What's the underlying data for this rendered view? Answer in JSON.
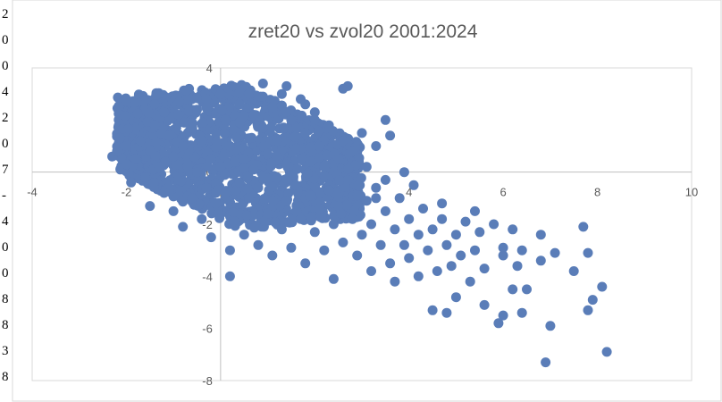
{
  "chart_data": {
    "type": "scatter",
    "title": "zret20 vs zvol20 2001:2024",
    "xlabel": "",
    "ylabel": "",
    "xlim": [
      -4,
      10
    ],
    "ylim": [
      -8,
      4
    ],
    "x_ticks": [
      "-4",
      "-2",
      "0",
      "2",
      "4",
      "6",
      "8",
      "10"
    ],
    "y_ticks": [
      "4",
      "2",
      "0",
      "-2",
      "-4",
      "-6",
      "-8"
    ],
    "grid": false,
    "legend": "none",
    "marker_color": "#5a7db8",
    "note": "dense cloud approximated; representative points",
    "series": [
      {
        "points": [
          [
            -2.3,
            0.6
          ],
          [
            -2.2,
            0.8
          ],
          [
            -2.0,
            0.3
          ],
          [
            -2.0,
            1.0
          ],
          [
            -1.9,
            -0.4
          ],
          [
            -1.8,
            0.5
          ],
          [
            -1.7,
            1.2
          ],
          [
            -1.6,
            -0.2
          ],
          [
            -1.5,
            0.8
          ],
          [
            -1.5,
            -1.3
          ],
          [
            -1.4,
            1.8
          ],
          [
            -1.3,
            0.2
          ],
          [
            -1.2,
            -0.8
          ],
          [
            -1.1,
            1.4
          ],
          [
            -1.0,
            -1.5
          ],
          [
            -1.0,
            0.6
          ],
          [
            -0.9,
            2.2
          ],
          [
            -0.9,
            -0.3
          ],
          [
            -0.8,
            1.0
          ],
          [
            -0.8,
            -2.1
          ],
          [
            -0.7,
            0.2
          ],
          [
            -0.6,
            1.7
          ],
          [
            -0.6,
            -1.0
          ],
          [
            -0.5,
            2.4
          ],
          [
            -0.5,
            0.0
          ],
          [
            -0.4,
            -1.8
          ],
          [
            -0.4,
            1.2
          ],
          [
            -0.3,
            -0.6
          ],
          [
            -0.3,
            2.8
          ],
          [
            -0.2,
            0.5
          ],
          [
            -0.2,
            -2.5
          ],
          [
            -0.1,
            1.5
          ],
          [
            -0.1,
            -1.2
          ],
          [
            0.0,
            0.2
          ],
          [
            0.0,
            3.0
          ],
          [
            0.1,
            -0.8
          ],
          [
            0.1,
            2.0
          ],
          [
            0.2,
            -4.0
          ],
          [
            0.2,
            -3.0
          ],
          [
            0.2,
            1.0
          ],
          [
            0.3,
            -1.9
          ],
          [
            0.3,
            0.4
          ],
          [
            0.4,
            2.6
          ],
          [
            0.4,
            -0.4
          ],
          [
            0.5,
            3.2
          ],
          [
            0.5,
            -2.4
          ],
          [
            0.6,
            1.3
          ],
          [
            0.6,
            -1.0
          ],
          [
            0.7,
            0.1
          ],
          [
            0.7,
            2.2
          ],
          [
            0.8,
            -2.8
          ],
          [
            0.8,
            -0.6
          ],
          [
            0.9,
            1.7
          ],
          [
            0.9,
            3.4
          ],
          [
            1.0,
            -1.6
          ],
          [
            1.0,
            0.7
          ],
          [
            1.1,
            -3.2
          ],
          [
            1.1,
            2.5
          ],
          [
            1.2,
            -0.2
          ],
          [
            1.2,
            1.2
          ],
          [
            1.3,
            -2.2
          ],
          [
            1.3,
            3.0
          ],
          [
            1.4,
            0.3
          ],
          [
            1.4,
            -1.1
          ],
          [
            1.5,
            2.0
          ],
          [
            1.5,
            -2.9
          ],
          [
            1.6,
            0.9
          ],
          [
            1.6,
            -0.5
          ],
          [
            1.7,
            2.8
          ],
          [
            1.7,
            -1.8
          ],
          [
            1.8,
            -3.5
          ],
          [
            1.8,
            1.5
          ],
          [
            1.9,
            -0.9
          ],
          [
            1.9,
            0.4
          ],
          [
            2.0,
            2.3
          ],
          [
            2.0,
            -2.3
          ],
          [
            2.1,
            -1.4
          ],
          [
            2.1,
            1.0
          ],
          [
            2.2,
            -3.0
          ],
          [
            2.2,
            0.2
          ],
          [
            2.3,
            -0.7
          ],
          [
            2.3,
            1.8
          ],
          [
            2.4,
            -2.0
          ],
          [
            2.4,
            -4.1
          ],
          [
            2.5,
            0.5
          ],
          [
            2.5,
            -1.3
          ],
          [
            2.6,
            1.2
          ],
          [
            2.6,
            -2.7
          ],
          [
            2.7,
            -0.3
          ],
          [
            2.7,
            3.3
          ],
          [
            2.8,
            -1.8
          ],
          [
            2.8,
            0.8
          ],
          [
            2.9,
            -3.2
          ],
          [
            2.9,
            -0.9
          ],
          [
            3.0,
            1.5
          ],
          [
            3.0,
            -2.4
          ],
          [
            3.1,
            -1.1
          ],
          [
            3.1,
            0.2
          ],
          [
            3.2,
            -3.8
          ],
          [
            3.2,
            -2.0
          ],
          [
            3.3,
            -0.6
          ],
          [
            3.3,
            1.0
          ],
          [
            3.4,
            -2.8
          ],
          [
            3.5,
            -1.5
          ],
          [
            3.5,
            -0.3
          ],
          [
            3.6,
            -3.5
          ],
          [
            3.6,
            1.4
          ],
          [
            3.7,
            -2.2
          ],
          [
            3.7,
            -4.2
          ],
          [
            3.8,
            -1.0
          ],
          [
            3.9,
            -2.8
          ],
          [
            3.9,
            0.0
          ],
          [
            4.0,
            -1.8
          ],
          [
            4.0,
            -3.3
          ],
          [
            4.1,
            -0.5
          ],
          [
            4.2,
            -2.4
          ],
          [
            4.2,
            -4.0
          ],
          [
            4.3,
            -1.4
          ],
          [
            4.4,
            -3.0
          ],
          [
            4.5,
            -2.2
          ],
          [
            4.5,
            -5.3
          ],
          [
            4.6,
            -3.8
          ],
          [
            4.7,
            -1.8
          ],
          [
            4.8,
            -2.8
          ],
          [
            4.8,
            -5.4
          ],
          [
            4.9,
            -3.6
          ],
          [
            5.0,
            -2.4
          ],
          [
            5.0,
            -4.8
          ],
          [
            5.1,
            -3.2
          ],
          [
            5.2,
            -1.9
          ],
          [
            5.3,
            -4.2
          ],
          [
            5.4,
            -3.0
          ],
          [
            5.5,
            -2.3
          ],
          [
            5.6,
            -5.1
          ],
          [
            5.6,
            -3.7
          ],
          [
            5.8,
            -2.0
          ],
          [
            5.9,
            -5.8
          ],
          [
            6.0,
            -3.2
          ],
          [
            6.0,
            -5.5
          ],
          [
            6.2,
            -2.2
          ],
          [
            6.2,
            -4.5
          ],
          [
            6.3,
            -3.6
          ],
          [
            6.4,
            -3.0
          ],
          [
            6.4,
            -5.4
          ],
          [
            6.5,
            -4.5
          ],
          [
            6.8,
            -2.4
          ],
          [
            6.8,
            -3.4
          ],
          [
            6.9,
            -7.3
          ],
          [
            7.0,
            -5.9
          ],
          [
            7.1,
            -3.1
          ],
          [
            7.5,
            -3.8
          ],
          [
            7.7,
            -2.1
          ],
          [
            7.8,
            -5.3
          ],
          [
            7.8,
            -3.1
          ],
          [
            7.9,
            -4.9
          ],
          [
            8.1,
            -4.4
          ],
          [
            8.2,
            -6.9
          ],
          [
            6.0,
            -2.9
          ],
          [
            5.4,
            -1.5
          ],
          [
            4.7,
            -1.2
          ],
          [
            3.5,
            2.0
          ],
          [
            3.3,
            -1.0
          ],
          [
            2.6,
            3.2
          ],
          [
            0.9,
            2.9
          ],
          [
            1.8,
            2.6
          ],
          [
            -1.2,
            2.3
          ],
          [
            -0.3,
            2.5
          ],
          [
            0.6,
            3.0
          ],
          [
            1.4,
            3.3
          ],
          [
            2.0,
            2.0
          ]
        ]
      }
    ]
  },
  "edge_glyphs": [
    "2",
    "0",
    "0",
    "4",
    "2",
    "0",
    "7",
    "-",
    "4",
    "0",
    "0",
    "8",
    "8",
    "3",
    "8"
  ]
}
